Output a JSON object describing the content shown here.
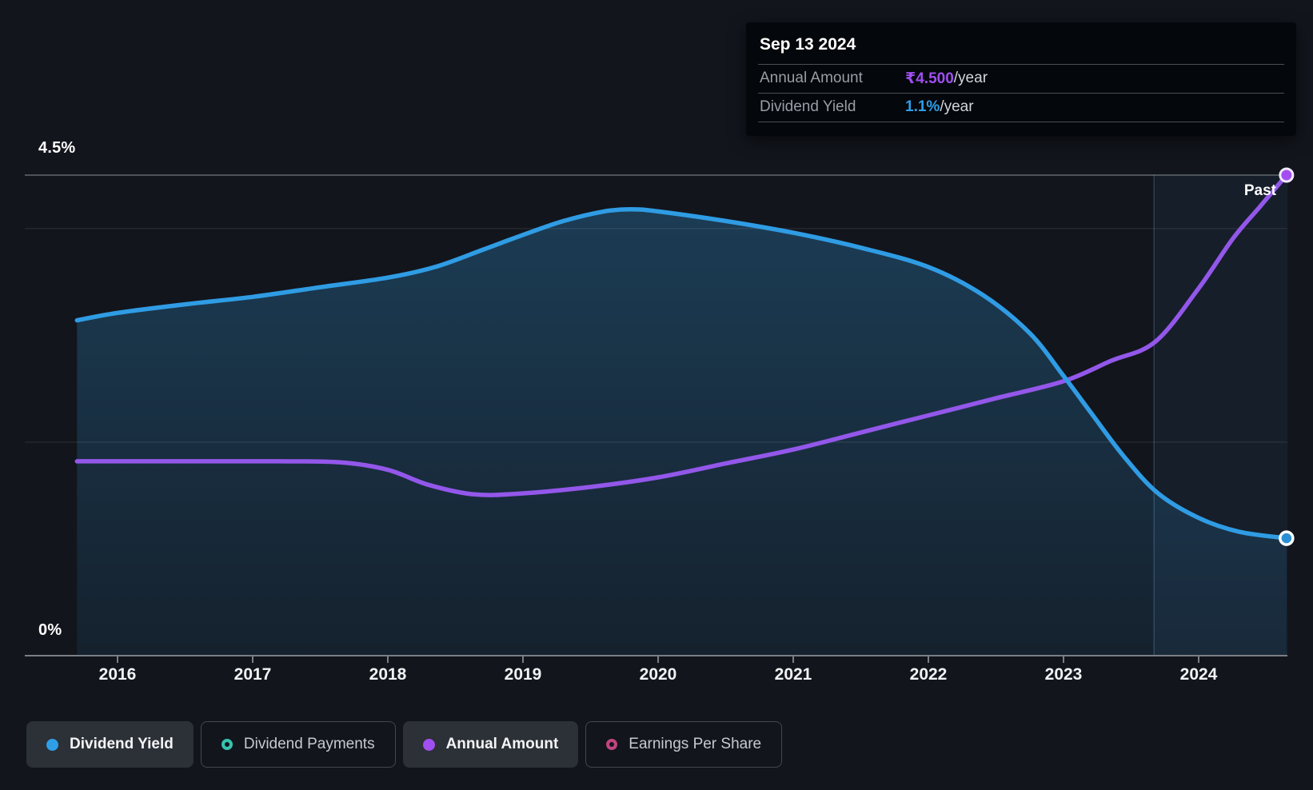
{
  "tooltip": {
    "date": "Sep 13 2024",
    "rows": [
      {
        "label": "Annual Amount",
        "value": "₹4.500",
        "suffix": "/year",
        "value_color": "#9e4ff0"
      },
      {
        "label": "Dividend Yield",
        "value": "1.1%",
        "suffix": "/year",
        "value_color": "#2f9fe8"
      }
    ]
  },
  "axis": {
    "y_max_label": "4.5%",
    "y_min_label": "0%"
  },
  "past_label": "Past",
  "legend": [
    {
      "label": "Dividend Yield",
      "marker": "filled",
      "color": "#2e9fe6",
      "active": true
    },
    {
      "label": "Dividend Payments",
      "marker": "open",
      "color": "#35c4ae",
      "active": false
    },
    {
      "label": "Annual Amount",
      "marker": "filled",
      "color": "#a04ff0",
      "active": true
    },
    {
      "label": "Earnings Per Share",
      "marker": "open",
      "color": "#c0457f",
      "active": false
    }
  ],
  "chart_data": {
    "type": "line",
    "title": "Dividend history",
    "x_ticks": [
      2016,
      2017,
      2018,
      2019,
      2020,
      2021,
      2022,
      2023,
      2024
    ],
    "x_range": [
      2015.7,
      2024.65
    ],
    "y_axis": {
      "unit": "%",
      "range": [
        0,
        4.5
      ],
      "labeled_ticks": [
        "0%",
        "4.5%"
      ],
      "grid_values": [
        4.5,
        4.0,
        2.0,
        0.0
      ]
    },
    "past_region_start": 2023.67,
    "series": [
      {
        "name": "Dividend Yield",
        "unit": "%",
        "color": "#2f9ce4",
        "area": true,
        "points": [
          [
            2015.7,
            3.14
          ],
          [
            2016,
            3.21
          ],
          [
            2016.5,
            3.29
          ],
          [
            2017,
            3.36
          ],
          [
            2017.5,
            3.45
          ],
          [
            2018,
            3.54
          ],
          [
            2018.35,
            3.64
          ],
          [
            2018.7,
            3.8
          ],
          [
            2019,
            3.94
          ],
          [
            2019.3,
            4.07
          ],
          [
            2019.6,
            4.16
          ],
          [
            2019.8,
            4.18
          ],
          [
            2020,
            4.16
          ],
          [
            2020.5,
            4.07
          ],
          [
            2021,
            3.96
          ],
          [
            2021.5,
            3.82
          ],
          [
            2022,
            3.64
          ],
          [
            2022.4,
            3.38
          ],
          [
            2022.75,
            3.02
          ],
          [
            2023,
            2.62
          ],
          [
            2023.2,
            2.28
          ],
          [
            2023.45,
            1.86
          ],
          [
            2023.7,
            1.52
          ],
          [
            2024,
            1.29
          ],
          [
            2024.3,
            1.16
          ],
          [
            2024.65,
            1.1
          ]
        ],
        "end_value_label": "1.1%/year"
      },
      {
        "name": "Annual Amount",
        "unit": "₹/year",
        "color": "#9357ea",
        "area": false,
        "points": [
          [
            2015.7,
            1.82
          ],
          [
            2016.5,
            1.82
          ],
          [
            2017.2,
            1.82
          ],
          [
            2017.65,
            1.81
          ],
          [
            2018,
            1.74
          ],
          [
            2018.3,
            1.6
          ],
          [
            2018.64,
            1.51
          ],
          [
            2019,
            1.52
          ],
          [
            2019.5,
            1.58
          ],
          [
            2020,
            1.67
          ],
          [
            2020.5,
            1.8
          ],
          [
            2021,
            1.93
          ],
          [
            2021.5,
            2.09
          ],
          [
            2022,
            2.25
          ],
          [
            2022.5,
            2.41
          ],
          [
            2023,
            2.57
          ],
          [
            2023.35,
            2.76
          ],
          [
            2023.68,
            2.94
          ],
          [
            2024,
            3.44
          ],
          [
            2024.25,
            3.9
          ],
          [
            2024.45,
            4.2
          ],
          [
            2024.65,
            4.5
          ]
        ],
        "end_value_label": "₹4.500/year"
      }
    ],
    "legend_entries": [
      "Dividend Yield",
      "Dividend Payments",
      "Annual Amount",
      "Earnings Per Share"
    ],
    "annotations": [
      "Past"
    ]
  }
}
